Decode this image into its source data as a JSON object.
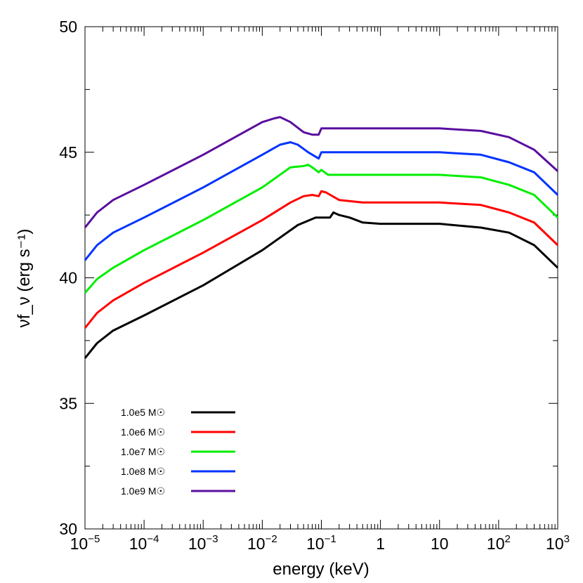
{
  "chart_data": {
    "type": "line",
    "xlabel": "energy (keV)",
    "ylabel": "νf_ν (erg s⁻¹)",
    "x_scale": "log",
    "xlim": [
      1e-05,
      1000
    ],
    "ylim": [
      30,
      50
    ],
    "x_ticks": [
      {
        "value": 1e-05,
        "base": "10",
        "exp": "−5"
      },
      {
        "value": 0.0001,
        "base": "10",
        "exp": "−4"
      },
      {
        "value": 0.001,
        "base": "10",
        "exp": "−3"
      },
      {
        "value": 0.01,
        "base": "10",
        "exp": "−2"
      },
      {
        "value": 0.1,
        "base": "10",
        "exp": "−1"
      },
      {
        "value": 1,
        "base": "1",
        "exp": ""
      },
      {
        "value": 10,
        "base": "10",
        "exp": ""
      },
      {
        "value": 100,
        "base": "10",
        "exp": "2"
      },
      {
        "value": 1000,
        "base": "10",
        "exp": "3"
      }
    ],
    "y_ticks": [
      30,
      35,
      40,
      45,
      50
    ],
    "grid": false,
    "legend_position": "bottom-left",
    "series": [
      {
        "name": "1.0e5 M☉",
        "color": "#000000",
        "points": [
          [
            1e-05,
            36.8
          ],
          [
            1.6e-05,
            37.4
          ],
          [
            3e-05,
            37.9
          ],
          [
            0.0001,
            38.5
          ],
          [
            0.001,
            39.7
          ],
          [
            0.01,
            41.1
          ],
          [
            0.04,
            42.1
          ],
          [
            0.08,
            42.4
          ],
          [
            0.14,
            42.4
          ],
          [
            0.16,
            42.6
          ],
          [
            0.2,
            42.5
          ],
          [
            0.3,
            42.4
          ],
          [
            0.5,
            42.2
          ],
          [
            1,
            42.15
          ],
          [
            3,
            42.15
          ],
          [
            10,
            42.15
          ],
          [
            50,
            42.0
          ],
          [
            150,
            41.8
          ],
          [
            400,
            41.3
          ],
          [
            1000,
            40.4
          ]
        ]
      },
      {
        "name": "1.0e6 M☉",
        "color": "#ff0000",
        "points": [
          [
            1e-05,
            38.0
          ],
          [
            1.6e-05,
            38.6
          ],
          [
            3e-05,
            39.1
          ],
          [
            0.0001,
            39.8
          ],
          [
            0.001,
            41.0
          ],
          [
            0.01,
            42.3
          ],
          [
            0.03,
            43.0
          ],
          [
            0.05,
            43.25
          ],
          [
            0.07,
            43.3
          ],
          [
            0.09,
            43.25
          ],
          [
            0.1,
            43.45
          ],
          [
            0.12,
            43.4
          ],
          [
            0.2,
            43.1
          ],
          [
            0.5,
            43.0
          ],
          [
            1,
            43.0
          ],
          [
            10,
            43.0
          ],
          [
            50,
            42.9
          ],
          [
            150,
            42.6
          ],
          [
            400,
            42.2
          ],
          [
            1000,
            41.3
          ]
        ]
      },
      {
        "name": "1.0e7 M☉",
        "color": "#00ee00",
        "points": [
          [
            1e-05,
            39.4
          ],
          [
            1.6e-05,
            39.95
          ],
          [
            3e-05,
            40.4
          ],
          [
            0.0001,
            41.1
          ],
          [
            0.001,
            42.3
          ],
          [
            0.01,
            43.6
          ],
          [
            0.03,
            44.4
          ],
          [
            0.05,
            44.45
          ],
          [
            0.06,
            44.5
          ],
          [
            0.07,
            44.4
          ],
          [
            0.09,
            44.2
          ],
          [
            0.1,
            44.3
          ],
          [
            0.13,
            44.1
          ],
          [
            0.3,
            44.1
          ],
          [
            1,
            44.1
          ],
          [
            10,
            44.1
          ],
          [
            50,
            44.0
          ],
          [
            150,
            43.7
          ],
          [
            400,
            43.3
          ],
          [
            1000,
            42.4
          ]
        ]
      },
      {
        "name": "1.0e8 M☉",
        "color": "#0033ff",
        "points": [
          [
            1e-05,
            40.7
          ],
          [
            1.6e-05,
            41.3
          ],
          [
            3e-05,
            41.8
          ],
          [
            0.0001,
            42.4
          ],
          [
            0.001,
            43.6
          ],
          [
            0.01,
            44.9
          ],
          [
            0.02,
            45.3
          ],
          [
            0.03,
            45.4
          ],
          [
            0.04,
            45.3
          ],
          [
            0.06,
            45.0
          ],
          [
            0.09,
            44.75
          ],
          [
            0.1,
            45.0
          ],
          [
            0.2,
            45.0
          ],
          [
            1,
            45.0
          ],
          [
            10,
            45.0
          ],
          [
            50,
            44.9
          ],
          [
            150,
            44.6
          ],
          [
            400,
            44.2
          ],
          [
            1000,
            43.3
          ]
        ]
      },
      {
        "name": "1.0e9 M☉",
        "color": "#5a0e9e",
        "points": [
          [
            1e-05,
            42.0
          ],
          [
            1.6e-05,
            42.6
          ],
          [
            3e-05,
            43.1
          ],
          [
            0.0001,
            43.7
          ],
          [
            0.001,
            44.9
          ],
          [
            0.01,
            46.2
          ],
          [
            0.016,
            46.35
          ],
          [
            0.02,
            46.4
          ],
          [
            0.03,
            46.2
          ],
          [
            0.05,
            45.8
          ],
          [
            0.07,
            45.7
          ],
          [
            0.09,
            45.7
          ],
          [
            0.1,
            45.95
          ],
          [
            0.2,
            45.95
          ],
          [
            1,
            45.95
          ],
          [
            10,
            45.95
          ],
          [
            50,
            45.85
          ],
          [
            150,
            45.6
          ],
          [
            400,
            45.1
          ],
          [
            1000,
            44.25
          ]
        ]
      }
    ]
  }
}
